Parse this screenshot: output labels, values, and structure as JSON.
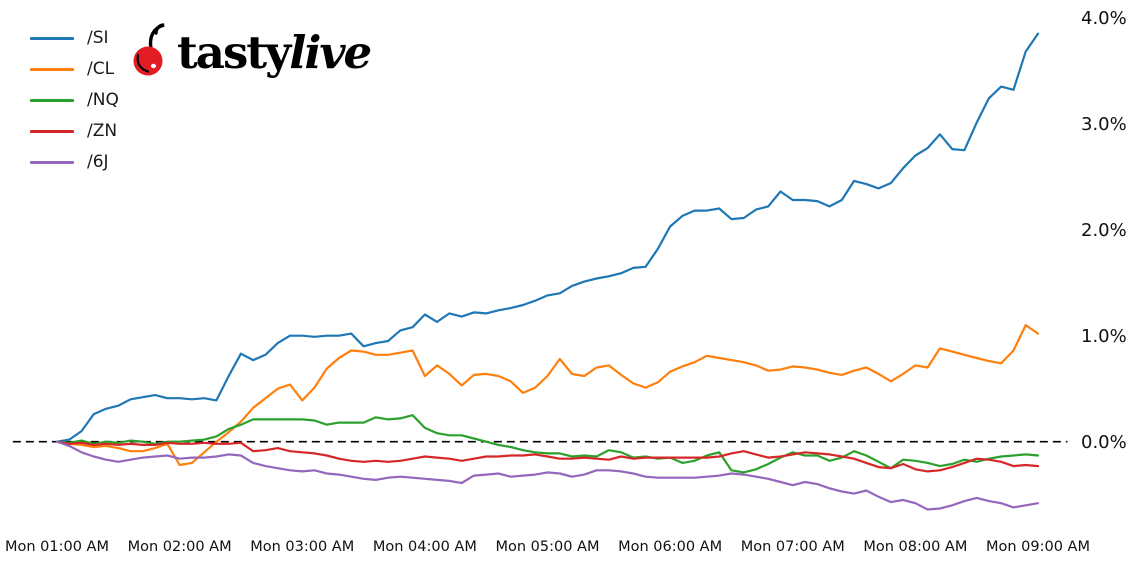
{
  "logo": {
    "text_regular": "tasty",
    "text_italic": "live",
    "cherry_color": "#e31b23",
    "text_color": "#000000"
  },
  "axis": {
    "text_color": "#111111",
    "zero_line_color": "#000000"
  },
  "chart_data": {
    "type": "line",
    "title": "",
    "xlabel": "",
    "ylabel": "",
    "grid": false,
    "legend_position": "top-left",
    "zero_line_dashed": true,
    "ylim": [
      -0.78,
      4.08
    ],
    "xlim_hours": [
      0.64,
      9.24
    ],
    "y_tick_values": [
      0,
      1,
      2,
      3,
      4
    ],
    "y_tick_labels": [
      "0.0%",
      "1.0%",
      "2.0%",
      "3.0%",
      "4.0%"
    ],
    "x_tick_hours": [
      1,
      2,
      3,
      4,
      5,
      6,
      7,
      8,
      9
    ],
    "x_tick_labels": [
      "Mon 01:00 AM",
      "Mon 02:00 AM",
      "Mon 03:00 AM",
      "Mon 04:00 AM",
      "Mon 05:00 AM",
      "Mon 06:00 AM",
      "Mon 07:00 AM",
      "Mon 08:00 AM",
      "Mon 09:00 AM"
    ],
    "x_hours": [
      1.0,
      1.1,
      1.2,
      1.3,
      1.4,
      1.5,
      1.6,
      1.7,
      1.8,
      1.9,
      2.0,
      2.1,
      2.2,
      2.3,
      2.4,
      2.5,
      2.6,
      2.7,
      2.8,
      2.9,
      3.0,
      3.1,
      3.2,
      3.3,
      3.4,
      3.5,
      3.6,
      3.7,
      3.8,
      3.9,
      4.0,
      4.1,
      4.2,
      4.3,
      4.4,
      4.5,
      4.6,
      4.7,
      4.8,
      4.9,
      5.0,
      5.1,
      5.2,
      5.3,
      5.4,
      5.5,
      5.6,
      5.7,
      5.8,
      5.9,
      6.0,
      6.1,
      6.2,
      6.3,
      6.4,
      6.5,
      6.6,
      6.7,
      6.8,
      6.9,
      7.0,
      7.1,
      7.2,
      7.3,
      7.4,
      7.5,
      7.6,
      7.7,
      7.8,
      7.9,
      8.0,
      8.1,
      8.2,
      8.3,
      8.4,
      8.5,
      8.6,
      8.7,
      8.8,
      8.9,
      9.0
    ],
    "y_unit": "percent",
    "series": [
      {
        "name": "/SI",
        "color": "#1f77b4",
        "values": [
          0.0,
          0.02,
          0.1,
          0.26,
          0.31,
          0.34,
          0.4,
          0.42,
          0.44,
          0.41,
          0.41,
          0.4,
          0.41,
          0.39,
          0.62,
          0.83,
          0.77,
          0.82,
          0.93,
          1.0,
          1.0,
          0.99,
          1.0,
          1.0,
          1.02,
          0.9,
          0.93,
          0.95,
          1.05,
          1.08,
          1.2,
          1.13,
          1.21,
          1.18,
          1.22,
          1.21,
          1.24,
          1.26,
          1.29,
          1.33,
          1.38,
          1.4,
          1.47,
          1.51,
          1.54,
          1.56,
          1.59,
          1.64,
          1.65,
          1.82,
          2.03,
          2.13,
          2.18,
          2.18,
          2.2,
          2.1,
          2.11,
          2.19,
          2.22,
          2.36,
          2.28,
          2.28,
          2.27,
          2.22,
          2.28,
          2.46,
          2.43,
          2.39,
          2.44,
          2.58,
          2.7,
          2.77,
          2.9,
          2.76,
          2.75,
          3.01,
          3.24,
          3.35,
          3.32,
          3.68,
          3.85
        ]
      },
      {
        "name": "/CL",
        "color": "#ff7f0e",
        "values": [
          0.0,
          -0.02,
          -0.03,
          -0.05,
          -0.04,
          -0.06,
          -0.09,
          -0.09,
          -0.06,
          -0.02,
          -0.22,
          -0.2,
          -0.1,
          0.0,
          0.09,
          0.19,
          0.32,
          0.41,
          0.5,
          0.54,
          0.39,
          0.51,
          0.69,
          0.79,
          0.86,
          0.85,
          0.82,
          0.82,
          0.84,
          0.86,
          0.62,
          0.72,
          0.64,
          0.53,
          0.63,
          0.64,
          0.62,
          0.57,
          0.46,
          0.51,
          0.62,
          0.78,
          0.64,
          0.62,
          0.7,
          0.72,
          0.63,
          0.55,
          0.51,
          0.56,
          0.66,
          0.71,
          0.75,
          0.81,
          0.79,
          0.77,
          0.75,
          0.72,
          0.67,
          0.68,
          0.71,
          0.7,
          0.68,
          0.65,
          0.63,
          0.67,
          0.7,
          0.64,
          0.57,
          0.64,
          0.72,
          0.7,
          0.88,
          0.85,
          0.82,
          0.79,
          0.76,
          0.74,
          0.86,
          1.1,
          1.02
        ]
      },
      {
        "name": "/NQ",
        "color": "#2ca02c",
        "values": [
          0.0,
          -0.01,
          0.01,
          -0.02,
          0.0,
          -0.01,
          0.01,
          0.0,
          -0.02,
          0.0,
          0.0,
          0.01,
          0.02,
          0.05,
          0.12,
          0.16,
          0.21,
          0.21,
          0.21,
          0.21,
          0.21,
          0.2,
          0.16,
          0.18,
          0.18,
          0.18,
          0.23,
          0.21,
          0.22,
          0.25,
          0.13,
          0.08,
          0.06,
          0.06,
          0.03,
          0.0,
          -0.03,
          -0.05,
          -0.08,
          -0.1,
          -0.11,
          -0.11,
          -0.14,
          -0.13,
          -0.14,
          -0.08,
          -0.1,
          -0.15,
          -0.14,
          -0.16,
          -0.15,
          -0.2,
          -0.18,
          -0.13,
          -0.1,
          -0.27,
          -0.29,
          -0.26,
          -0.21,
          -0.15,
          -0.1,
          -0.13,
          -0.13,
          -0.18,
          -0.15,
          -0.09,
          -0.13,
          -0.19,
          -0.25,
          -0.17,
          -0.18,
          -0.2,
          -0.23,
          -0.21,
          -0.17,
          -0.19,
          -0.16,
          -0.14,
          -0.13,
          -0.12,
          -0.13
        ]
      },
      {
        "name": "/ZN",
        "color": "#d62728",
        "values": [
          0.0,
          -0.02,
          -0.01,
          -0.03,
          -0.02,
          -0.03,
          -0.02,
          -0.03,
          -0.03,
          -0.01,
          -0.02,
          -0.02,
          -0.01,
          -0.02,
          -0.02,
          -0.01,
          -0.09,
          -0.08,
          -0.06,
          -0.09,
          -0.1,
          -0.11,
          -0.13,
          -0.16,
          -0.18,
          -0.19,
          -0.18,
          -0.19,
          -0.18,
          -0.16,
          -0.14,
          -0.15,
          -0.16,
          -0.18,
          -0.16,
          -0.14,
          -0.14,
          -0.13,
          -0.13,
          -0.12,
          -0.14,
          -0.16,
          -0.16,
          -0.15,
          -0.16,
          -0.17,
          -0.14,
          -0.16,
          -0.15,
          -0.15,
          -0.15,
          -0.15,
          -0.15,
          -0.15,
          -0.14,
          -0.11,
          -0.09,
          -0.12,
          -0.15,
          -0.14,
          -0.12,
          -0.1,
          -0.11,
          -0.12,
          -0.14,
          -0.16,
          -0.2,
          -0.24,
          -0.25,
          -0.21,
          -0.26,
          -0.28,
          -0.27,
          -0.24,
          -0.2,
          -0.16,
          -0.17,
          -0.19,
          -0.23,
          -0.22,
          -0.23
        ]
      },
      {
        "name": "/6J",
        "color": "#9467bd",
        "values": [
          0.0,
          -0.04,
          -0.1,
          -0.14,
          -0.17,
          -0.19,
          -0.17,
          -0.15,
          -0.14,
          -0.13,
          -0.16,
          -0.15,
          -0.15,
          -0.14,
          -0.12,
          -0.13,
          -0.2,
          -0.23,
          -0.25,
          -0.27,
          -0.28,
          -0.27,
          -0.3,
          -0.31,
          -0.33,
          -0.35,
          -0.36,
          -0.34,
          -0.33,
          -0.34,
          -0.35,
          -0.36,
          -0.37,
          -0.39,
          -0.32,
          -0.31,
          -0.3,
          -0.33,
          -0.32,
          -0.31,
          -0.29,
          -0.3,
          -0.33,
          -0.31,
          -0.27,
          -0.27,
          -0.28,
          -0.3,
          -0.33,
          -0.34,
          -0.34,
          -0.34,
          -0.34,
          -0.33,
          -0.32,
          -0.3,
          -0.31,
          -0.33,
          -0.35,
          -0.38,
          -0.41,
          -0.38,
          -0.4,
          -0.44,
          -0.47,
          -0.49,
          -0.46,
          -0.52,
          -0.57,
          -0.55,
          -0.58,
          -0.64,
          -0.63,
          -0.6,
          -0.56,
          -0.53,
          -0.56,
          -0.58,
          -0.62,
          -0.6,
          -0.58
        ]
      }
    ]
  }
}
